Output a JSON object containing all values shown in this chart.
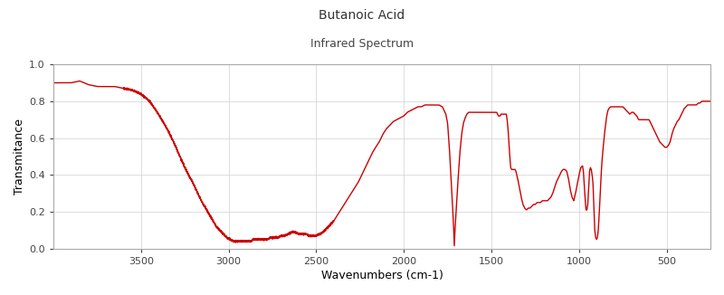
{
  "title": "Butanoic Acid",
  "subtitle": "Infrared Spectrum",
  "xlabel": "Wavenumbers (cm-1)",
  "ylabel": "Transmitance",
  "xlim": [
    4000,
    250
  ],
  "ylim": [
    0.0,
    1.0
  ],
  "line_color": "#cc0000",
  "bg_color": "#ffffff",
  "grid_color": "#d0d0d0",
  "xticks": [
    3500,
    3000,
    2500,
    2000,
    1500,
    1000,
    500
  ],
  "yticks": [
    0.0,
    0.2,
    0.4,
    0.6,
    0.8,
    1.0
  ]
}
